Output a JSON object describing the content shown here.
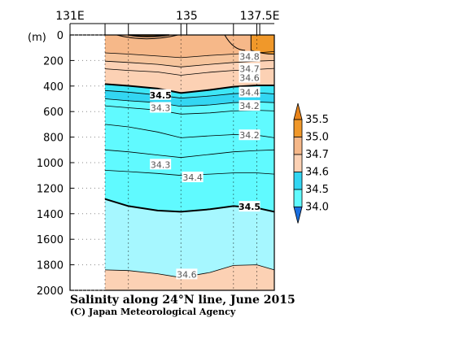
{
  "chart_data": {
    "type": "heatmap",
    "title": "Salinity along 24°N line, June 2015",
    "credit": "(C) Japan Meteorological Agency",
    "y_unit": "(m)",
    "x_tick_labels": [
      "131E",
      "135",
      "137.5E"
    ],
    "x_ticks_lon": [
      131,
      135,
      137.5
    ],
    "xlim": [
      131,
      138
    ],
    "data_lon_range": [
      132.2,
      138
    ],
    "ylim": [
      0,
      2000
    ],
    "y_ticks": [
      0,
      200,
      400,
      600,
      800,
      1000,
      1200,
      1400,
      1600,
      1800,
      2000
    ],
    "y_tick_labels": [
      "0",
      "200",
      "400",
      "600",
      "800",
      "1000",
      "1200",
      "1400",
      "1600",
      "1800",
      "2000"
    ],
    "station_lons": [
      132.2,
      133.0,
      134.8,
      136.6,
      137.4
    ],
    "colorbar": {
      "levels": [
        34.0,
        34.5,
        34.6,
        34.7,
        35.0,
        35.5
      ],
      "labels": [
        "34.0",
        "34.5",
        "34.6",
        "34.7",
        "35.0",
        "35.5"
      ],
      "colors": [
        "#60faff",
        "#33d6f2",
        "#fcd1b4",
        "#f6b889",
        "#f0982a"
      ],
      "low_extend": "#1a6fe0",
      "high_extend": "#e8841a"
    },
    "band_colors": {
      "c34_0": "#a6f7ff",
      "c34_3": "#60faff",
      "c34_4": "#33d6f2",
      "c34_5": "#3ee6f6",
      "c34_6": "#fcd1b4",
      "c34_7": "#f6c49c",
      "c35_0": "#f6b889",
      "c35_5": "#f0982a"
    },
    "contours": [
      {
        "level": "34.8",
        "bold": false,
        "lon": [
          132.2,
          133.0,
          134.0,
          134.8,
          135.8,
          136.6,
          137.4,
          138.0
        ],
        "depth": [
          140,
          150,
          165,
          178,
          160,
          150,
          140,
          130
        ]
      },
      {
        "level": "34.7",
        "bold": false,
        "lon": [
          132.2,
          133.0,
          134.0,
          134.8,
          135.8,
          136.6,
          137.4,
          138.0
        ],
        "depth": [
          205,
          215,
          230,
          250,
          230,
          215,
          205,
          200
        ]
      },
      {
        "level": "34.6",
        "bold": false,
        "lon": [
          132.2,
          133.0,
          134.0,
          134.8,
          135.8,
          136.6,
          137.4,
          138.0
        ],
        "depth": [
          265,
          278,
          290,
          315,
          292,
          278,
          270,
          262
        ]
      },
      {
        "level": "34.5",
        "bold": true,
        "lon": [
          132.2,
          133.0,
          134.0,
          134.8,
          135.8,
          136.6,
          137.4,
          138.0
        ],
        "depth": [
          385,
          398,
          420,
          455,
          430,
          405,
          395,
          395
        ]
      },
      {
        "level": "34.4",
        "bold": false,
        "lon": [
          132.2,
          133.0,
          134.0,
          134.8,
          135.8,
          136.6,
          137.4,
          138.0
        ],
        "depth": [
          435,
          448,
          470,
          495,
          478,
          460,
          452,
          462
        ]
      },
      {
        "level": "34.3",
        "bold": false,
        "lon": [
          132.2,
          133.0,
          134.0,
          134.8,
          135.8,
          136.6,
          137.4,
          138.0
        ],
        "depth": [
          500,
          515,
          530,
          560,
          548,
          530,
          525,
          530
        ]
      },
      {
        "level": "34.2",
        "bold": false,
        "lon": [
          132.2,
          133.0,
          134.0,
          134.8,
          135.8,
          136.6,
          137.4,
          138.0
        ],
        "depth": [
          555,
          570,
          588,
          620,
          610,
          595,
          590,
          595
        ]
      },
      {
        "level": "34.2",
        "bold": false,
        "lon": [
          132.2,
          133.0,
          134.0,
          134.8,
          135.8,
          136.6,
          137.4,
          138.0
        ],
        "depth": [
          700,
          720,
          760,
          805,
          790,
          780,
          785,
          805
        ]
      },
      {
        "level": "34.3",
        "bold": false,
        "lon": [
          132.2,
          133.0,
          134.0,
          134.8,
          135.8,
          136.6,
          137.4,
          138.0
        ],
        "depth": [
          900,
          915,
          940,
          960,
          935,
          915,
          905,
          900
        ]
      },
      {
        "level": "34.4",
        "bold": false,
        "lon": [
          132.2,
          133.0,
          134.0,
          134.8,
          135.8,
          136.6,
          137.4,
          138.0
        ],
        "depth": [
          1060,
          1070,
          1085,
          1100,
          1090,
          1080,
          1080,
          1090
        ]
      },
      {
        "level": "34.5",
        "bold": true,
        "lon": [
          132.2,
          133.0,
          134.0,
          134.8,
          135.8,
          136.6,
          137.4,
          138.0
        ],
        "depth": [
          1285,
          1340,
          1375,
          1385,
          1365,
          1340,
          1355,
          1385
        ]
      },
      {
        "level": "34.6",
        "bold": false,
        "lon": [
          132.2,
          133.0,
          134.0,
          134.8,
          135.8,
          136.6,
          137.4,
          138.0
        ],
        "depth": [
          1840,
          1845,
          1870,
          1900,
          1860,
          1805,
          1800,
          1840
        ]
      }
    ],
    "labels": [
      {
        "text": "34.8",
        "lon": 137.15,
        "depth": 170,
        "bold": false
      },
      {
        "text": "34.7",
        "lon": 137.15,
        "depth": 265,
        "bold": false
      },
      {
        "text": "34.6",
        "lon": 137.15,
        "depth": 335,
        "bold": false
      },
      {
        "text": "34.5",
        "lon": 134.1,
        "depth": 470,
        "bold": true
      },
      {
        "text": "34.4",
        "lon": 137.15,
        "depth": 450,
        "bold": false
      },
      {
        "text": "34.3",
        "lon": 134.1,
        "depth": 570,
        "bold": false
      },
      {
        "text": "34.2",
        "lon": 137.15,
        "depth": 555,
        "bold": false
      },
      {
        "text": "34.2",
        "lon": 137.15,
        "depth": 785,
        "bold": false
      },
      {
        "text": "34.3",
        "lon": 134.1,
        "depth": 1015,
        "bold": false
      },
      {
        "text": "34.4",
        "lon": 135.2,
        "depth": 1115,
        "bold": false
      },
      {
        "text": "34.5",
        "lon": 137.15,
        "depth": 1345,
        "bold": true
      },
      {
        "text": "34.6",
        "lon": 135.0,
        "depth": 1875,
        "bold": false
      }
    ]
  }
}
